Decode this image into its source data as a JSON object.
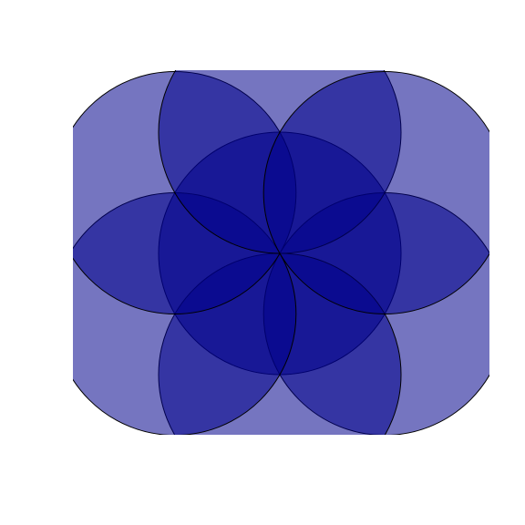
{
  "figure": {
    "description_type": "overlapping-circles-rosette",
    "circle_count": 7,
    "fill_color": "#00008b",
    "fill_opacity": 0.54,
    "stroke_color": "#000000",
    "background": "#ffffff"
  }
}
